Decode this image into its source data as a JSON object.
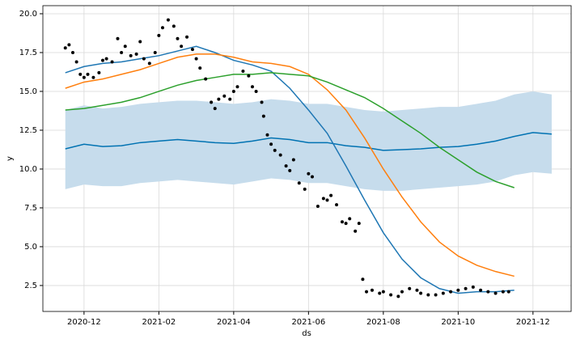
{
  "chart_data": {
    "type": "line",
    "xlabel": "ds",
    "ylabel": "y",
    "xlim": [
      -1.1,
      13.02
    ],
    "ylim": [
      0.83,
      20.52
    ],
    "grid": true,
    "xticks": [
      {
        "value": 0,
        "label": "2020-12"
      },
      {
        "value": 2,
        "label": "2021-02"
      },
      {
        "value": 4,
        "label": "2021-04"
      },
      {
        "value": 6,
        "label": "2021-06"
      },
      {
        "value": 8,
        "label": "2021-08"
      },
      {
        "value": 10,
        "label": "2021-10"
      },
      {
        "value": 12,
        "label": "2021-12"
      }
    ],
    "yticks": [
      2.5,
      {
        "value": 5,
        "label": "5.0"
      },
      7.5,
      {
        "value": 10,
        "label": "10.0"
      },
      12.5,
      {
        "value": 15,
        "label": "15.0"
      },
      17.5,
      {
        "value": 20,
        "label": "20.0"
      }
    ],
    "x": [
      -0.5,
      0,
      0.5,
      1,
      1.5,
      2,
      2.5,
      3,
      3.5,
      4,
      4.5,
      5,
      5.5,
      6,
      6.5,
      7,
      7.5,
      8,
      8.5,
      9,
      9.5,
      10,
      10.5,
      11,
      11.5,
      12,
      12.5
    ],
    "band": {
      "color": "#c6dcec",
      "upper": [
        13.8,
        14.1,
        13.9,
        14.0,
        14.2,
        14.3,
        14.4,
        14.4,
        14.3,
        14.2,
        14.3,
        14.5,
        14.4,
        14.2,
        14.2,
        14.0,
        13.8,
        13.7,
        13.8,
        13.9,
        14.0,
        14.0,
        14.2,
        14.4,
        14.8,
        15.0,
        14.8
      ],
      "lower": [
        8.7,
        9.0,
        8.9,
        8.9,
        9.1,
        9.2,
        9.3,
        9.2,
        9.1,
        9.0,
        9.2,
        9.4,
        9.3,
        9.1,
        9.1,
        8.9,
        8.7,
        8.6,
        8.6,
        8.7,
        8.8,
        8.9,
        9.0,
        9.2,
        9.6,
        9.8,
        9.7
      ]
    },
    "series": [
      {
        "color": "#0072b2",
        "values": [
          11.3,
          11.6,
          11.45,
          11.5,
          11.7,
          11.8,
          11.9,
          11.8,
          11.7,
          11.65,
          11.8,
          12.0,
          11.9,
          11.7,
          11.7,
          11.5,
          11.4,
          11.2,
          11.25,
          11.3,
          11.4,
          11.45,
          11.6,
          11.8,
          12.1,
          12.35,
          12.25
        ]
      },
      {
        "color": "#1f77b4",
        "values": [
          16.2,
          16.6,
          16.8,
          16.9,
          17.1,
          17.3,
          17.6,
          17.9,
          17.5,
          17.0,
          16.7,
          16.3,
          15.2,
          13.8,
          12.3,
          10.2,
          8.0,
          5.9,
          4.2,
          3.0,
          2.3,
          2.0,
          2.1,
          2.1,
          2.2,
          null,
          null
        ]
      },
      {
        "color": "#ff7f0e",
        "values": [
          15.2,
          15.6,
          15.8,
          16.1,
          16.4,
          16.8,
          17.2,
          17.4,
          17.4,
          17.2,
          16.9,
          16.8,
          16.6,
          16.1,
          15.1,
          13.8,
          12.0,
          10.0,
          8.2,
          6.6,
          5.3,
          4.4,
          3.8,
          3.4,
          3.1,
          null,
          null
        ]
      },
      {
        "color": "#2ca02c",
        "values": [
          13.8,
          13.9,
          14.1,
          14.3,
          14.6,
          15.0,
          15.4,
          15.7,
          15.9,
          16.1,
          16.1,
          16.2,
          16.1,
          16.0,
          15.6,
          15.1,
          14.6,
          13.9,
          13.1,
          12.3,
          11.4,
          10.6,
          9.8,
          9.2,
          8.8,
          null,
          null
        ]
      }
    ],
    "points": {
      "color": "#000000",
      "x": [
        -0.5,
        -0.4,
        -0.3,
        -0.2,
        -0.1,
        0,
        0.1,
        0.25,
        0.4,
        0.5,
        0.6,
        0.75,
        0.9,
        1.0,
        1.1,
        1.25,
        1.4,
        1.5,
        1.6,
        1.75,
        1.9,
        2.0,
        2.1,
        2.25,
        2.4,
        2.5,
        2.6,
        2.75,
        2.9,
        3.0,
        3.1,
        3.25,
        3.4,
        3.5,
        3.6,
        3.75,
        3.9,
        4.0,
        4.1,
        4.25,
        4.4,
        4.5,
        4.6,
        4.75,
        4.8,
        4.9,
        5.0,
        5.1,
        5.25,
        5.4,
        5.5,
        5.6,
        5.75,
        5.9,
        6.0,
        6.1,
        6.25,
        6.4,
        6.5,
        6.6,
        6.75,
        6.9,
        7.0,
        7.1,
        7.25,
        7.35,
        7.45,
        7.55,
        7.7,
        7.9,
        8.0,
        8.2,
        8.4,
        8.5,
        8.7,
        8.9,
        9.0,
        9.2,
        9.4,
        9.6,
        9.8,
        10.0,
        10.2,
        10.4,
        10.6,
        10.8,
        11.0,
        11.2,
        11.35
      ],
      "values": [
        17.8,
        18.0,
        17.5,
        16.9,
        16.1,
        15.9,
        16.1,
        15.9,
        16.2,
        17.0,
        17.1,
        16.9,
        18.4,
        17.5,
        17.9,
        17.3,
        17.4,
        18.2,
        17.1,
        16.8,
        17.5,
        18.6,
        19.1,
        19.6,
        19.2,
        18.4,
        17.9,
        18.5,
        17.7,
        17.1,
        16.5,
        15.8,
        14.3,
        13.9,
        14.5,
        14.7,
        14.5,
        15.0,
        15.3,
        16.3,
        16.0,
        15.3,
        15.0,
        14.3,
        13.4,
        12.2,
        11.6,
        11.2,
        10.9,
        10.2,
        9.9,
        10.6,
        9.1,
        8.7,
        9.7,
        9.5,
        7.6,
        8.1,
        8.0,
        8.3,
        7.7,
        6.6,
        6.5,
        6.8,
        6.0,
        6.5,
        2.9,
        2.1,
        2.2,
        2.0,
        2.1,
        1.9,
        1.8,
        2.1,
        2.3,
        2.2,
        2.0,
        1.9,
        1.9,
        2.0,
        2.1,
        2.2,
        2.3,
        2.4,
        2.2,
        2.1,
        2.0,
        2.1,
        2.1
      ]
    }
  }
}
